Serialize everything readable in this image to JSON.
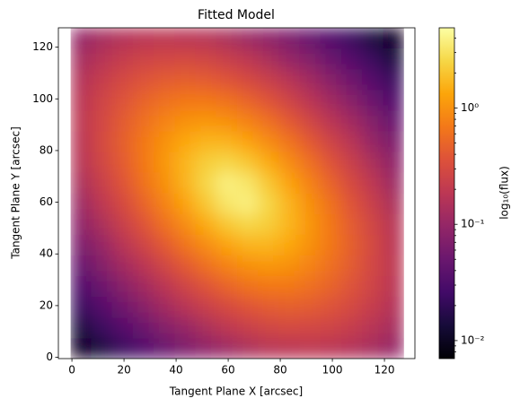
{
  "chart_data": {
    "type": "heatmap",
    "title": "Fitted Model",
    "x_label": "Tangent Plane X [arcsec]",
    "y_label": "Tangent Plane Y [arcsec]",
    "colorbar_label": "log₁₀(flux)",
    "colormap": "inferno",
    "color_scale": "log",
    "xlim": [
      -5.2,
      131.7
    ],
    "ylim": [
      -0.5,
      127.5
    ],
    "xticks": [
      0,
      20,
      40,
      60,
      80,
      100,
      120
    ],
    "yticks": [
      0,
      20,
      40,
      60,
      80,
      100,
      120
    ],
    "clim": [
      0.007,
      4.9
    ],
    "cticks": [
      {
        "value": 0.01,
        "label": "10⁻²"
      },
      {
        "value": 0.1,
        "label": "10⁻¹"
      },
      {
        "value": 1,
        "label": "10⁰"
      }
    ],
    "cminor_ticks": [
      0.008,
      0.009,
      0.02,
      0.03,
      0.04,
      0.05,
      0.06,
      0.07,
      0.08,
      0.09,
      0.2,
      0.3,
      0.4,
      0.5,
      0.6,
      0.7,
      0.8,
      0.9,
      2,
      3,
      4
    ],
    "x": [
      3.5,
      11.5,
      19.5,
      27.5,
      35.5,
      43.5,
      51.5,
      59.5,
      67.5,
      75.5,
      83.5,
      91.5,
      99.5,
      107.5,
      115.5,
      123.5
    ],
    "y": [
      3.5,
      11.5,
      19.5,
      27.5,
      35.5,
      43.5,
      51.5,
      59.5,
      67.5,
      75.5,
      83.5,
      91.5,
      99.5,
      107.5,
      115.5,
      123.5
    ],
    "z": [
      [
        0.01,
        0.015,
        0.023,
        0.033,
        0.047,
        0.066,
        0.089,
        0.11,
        0.14,
        0.17,
        0.18,
        0.19,
        0.18,
        0.16,
        0.13,
        0.1
      ],
      [
        0.015,
        0.023,
        0.035,
        0.051,
        0.074,
        0.1,
        0.14,
        0.19,
        0.23,
        0.27,
        0.29,
        0.28,
        0.26,
        0.22,
        0.17,
        0.13
      ],
      [
        0.023,
        0.035,
        0.053,
        0.079,
        0.12,
        0.17,
        0.23,
        0.3,
        0.37,
        0.43,
        0.44,
        0.42,
        0.36,
        0.29,
        0.22,
        0.16
      ],
      [
        0.033,
        0.051,
        0.079,
        0.12,
        0.18,
        0.26,
        0.37,
        0.49,
        0.61,
        0.68,
        0.68,
        0.6,
        0.48,
        0.36,
        0.26,
        0.18
      ],
      [
        0.047,
        0.074,
        0.12,
        0.18,
        0.27,
        0.41,
        0.59,
        0.79,
        0.98,
        1.06,
        0.99,
        0.81,
        0.6,
        0.42,
        0.28,
        0.19
      ],
      [
        0.066,
        0.1,
        0.17,
        0.26,
        0.41,
        0.63,
        0.92,
        1.29,
        1.58,
        1.62,
        1.36,
        0.99,
        0.68,
        0.44,
        0.29,
        0.18
      ],
      [
        0.089,
        0.14,
        0.23,
        0.37,
        0.59,
        0.92,
        1.43,
        2.07,
        2.54,
        2.26,
        1.62,
        1.06,
        0.68,
        0.43,
        0.27,
        0.17
      ],
      [
        0.11,
        0.19,
        0.3,
        0.49,
        0.79,
        1.29,
        2.07,
        3.24,
        3.79,
        2.54,
        1.58,
        0.98,
        0.61,
        0.37,
        0.23,
        0.14
      ],
      [
        0.14,
        0.23,
        0.37,
        0.61,
        0.98,
        1.58,
        2.54,
        3.79,
        3.24,
        2.07,
        1.29,
        0.79,
        0.49,
        0.3,
        0.19,
        0.11
      ],
      [
        0.17,
        0.27,
        0.43,
        0.68,
        1.06,
        1.62,
        2.26,
        2.54,
        2.07,
        1.43,
        0.92,
        0.59,
        0.37,
        0.23,
        0.14,
        0.089
      ],
      [
        0.18,
        0.29,
        0.44,
        0.68,
        0.99,
        1.36,
        1.62,
        1.58,
        1.29,
        0.92,
        0.63,
        0.41,
        0.26,
        0.17,
        0.1,
        0.066
      ],
      [
        0.19,
        0.28,
        0.42,
        0.6,
        0.81,
        0.99,
        1.06,
        0.98,
        0.79,
        0.59,
        0.41,
        0.27,
        0.18,
        0.12,
        0.074,
        0.047
      ],
      [
        0.18,
        0.26,
        0.36,
        0.48,
        0.6,
        0.68,
        0.68,
        0.61,
        0.49,
        0.37,
        0.26,
        0.18,
        0.12,
        0.079,
        0.051,
        0.033
      ],
      [
        0.16,
        0.22,
        0.29,
        0.36,
        0.42,
        0.44,
        0.43,
        0.37,
        0.3,
        0.23,
        0.17,
        0.12,
        0.079,
        0.053,
        0.035,
        0.023
      ],
      [
        0.13,
        0.17,
        0.22,
        0.26,
        0.28,
        0.29,
        0.27,
        0.23,
        0.19,
        0.14,
        0.1,
        0.074,
        0.051,
        0.035,
        0.023,
        0.015
      ],
      [
        0.1,
        0.13,
        0.16,
        0.18,
        0.19,
        0.18,
        0.17,
        0.14,
        0.11,
        0.089,
        0.066,
        0.047,
        0.033,
        0.023,
        0.015,
        0.01
      ]
    ]
  }
}
